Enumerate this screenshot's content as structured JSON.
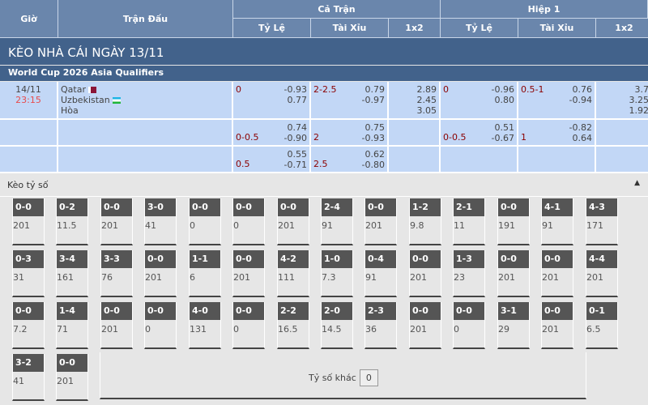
{
  "header": {
    "gio": "Giờ",
    "tran_dau": "Trận Đấu",
    "ca_tran": "Cả Trận",
    "hiep1": "Hiệp 1",
    "ty_le": "Tỷ Lệ",
    "tai_xiu": "Tài Xỉu",
    "x12": "1x2"
  },
  "title": "KÈO NHÀ CÁI NGÀY 13/11",
  "league": "World Cup 2026 Asia Qualifiers",
  "match": {
    "date": "14/11",
    "time": "23:15",
    "home": "Qatar",
    "away": "Uzbekistan",
    "draw": "Hòa"
  },
  "rows": [
    {
      "ft_hdp": "0",
      "ft_hdp_o": [
        "-0.93",
        "0.77"
      ],
      "ft_ou": "2-2.5",
      "ft_ou_o": [
        "0.79",
        "-0.97"
      ],
      "ft_1x2": [
        "2.89",
        "2.45",
        "3.05"
      ],
      "h1_hdp": "0",
      "h1_hdp_o": [
        "-0.96",
        "0.80"
      ],
      "h1_ou": "0.5-1",
      "h1_ou_o": [
        "0.76",
        "-0.94"
      ],
      "h1_1x2": [
        "3.7",
        "3.25",
        "1.92"
      ]
    },
    {
      "ft_hdp": "0-0.5",
      "ft_hdp_o": [
        "0.74",
        "-0.90"
      ],
      "ft_ou": "2",
      "ft_ou_o": [
        "0.75",
        "-0.93"
      ],
      "h1_hdp": "0-0.5",
      "h1_hdp_o": [
        "0.51",
        "-0.67"
      ],
      "h1_ou": "1",
      "h1_ou_o": [
        "-0.82",
        "0.64"
      ]
    },
    {
      "ft_hdp": "0.5",
      "ft_hdp_o": [
        "0.55",
        "-0.71"
      ],
      "ft_ou": "2.5",
      "ft_ou_o": [
        "0.62",
        "-0.80"
      ]
    }
  ],
  "correct_score": {
    "label": "Kèo tỷ số",
    "other_label": "Tỷ số khác",
    "other_value": "0",
    "cards": [
      [
        [
          "0-0",
          "201"
        ],
        [
          "0-2",
          "11.5"
        ],
        [
          "0-0",
          "201"
        ],
        [
          "3-0",
          "41"
        ],
        [
          "0-0",
          "0"
        ],
        [
          "0-0",
          "0"
        ],
        [
          "0-0",
          "201"
        ],
        [
          "2-4",
          "91"
        ],
        [
          "0-0",
          "201"
        ],
        [
          "1-2",
          "9.8"
        ],
        [
          "2-1",
          "11"
        ],
        [
          "0-0",
          "191"
        ],
        [
          "4-1",
          "91"
        ],
        [
          "4-3",
          "171"
        ]
      ],
      [
        [
          "0-3",
          "31"
        ],
        [
          "3-4",
          "161"
        ],
        [
          "3-3",
          "76"
        ],
        [
          "0-0",
          "201"
        ],
        [
          "1-1",
          "6"
        ],
        [
          "0-0",
          "201"
        ],
        [
          "4-2",
          "111"
        ],
        [
          "1-0",
          "7.3"
        ],
        [
          "0-4",
          "91"
        ],
        [
          "0-0",
          "201"
        ],
        [
          "1-3",
          "23"
        ],
        [
          "0-0",
          "201"
        ],
        [
          "0-0",
          "201"
        ],
        [
          "4-4",
          "201"
        ]
      ],
      [
        [
          "0-0",
          "7.2"
        ],
        [
          "1-4",
          "71"
        ],
        [
          "0-0",
          "201"
        ],
        [
          "0-0",
          "0"
        ],
        [
          "4-0",
          "131"
        ],
        [
          "0-0",
          "0"
        ],
        [
          "2-2",
          "16.5"
        ],
        [
          "2-0",
          "14.5"
        ],
        [
          "2-3",
          "36"
        ],
        [
          "0-0",
          "201"
        ],
        [
          "0-0",
          "0"
        ],
        [
          "3-1",
          "29"
        ],
        [
          "0-0",
          "201"
        ],
        [
          "0-1",
          "6.5"
        ]
      ],
      [
        [
          "3-2",
          "41"
        ],
        [
          "0-0",
          "201"
        ]
      ]
    ]
  },
  "colors": {
    "header": "#6a86ac",
    "title_bar": "#42628b",
    "row": "#c2d7f6",
    "line": "#8b0000",
    "time": "#e84c4c"
  }
}
